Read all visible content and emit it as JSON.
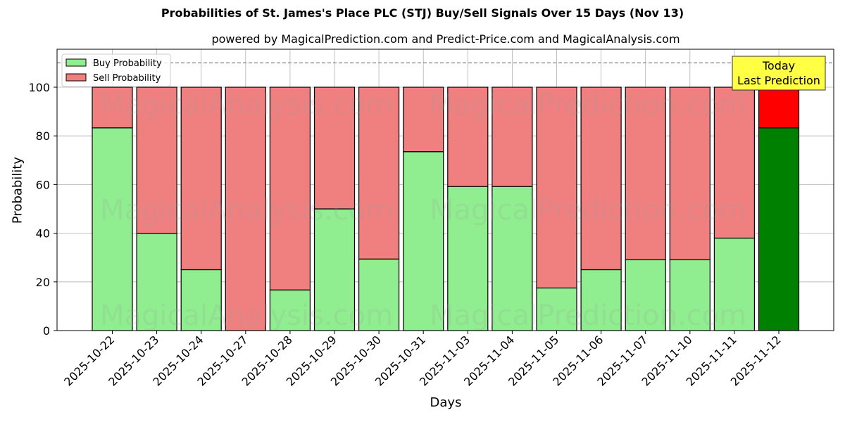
{
  "chart_data": {
    "type": "bar",
    "stacked": true,
    "title": "Probabilities of St. James's Place PLC (STJ) Buy/Sell Signals Over 15 Days (Nov 13)",
    "subtitle": "powered by MagicalPrediction.com and Predict-Price.com and MagicalAnalysis.com",
    "xlabel": "Days",
    "ylabel": "Probability",
    "ylim": [
      0,
      115
    ],
    "yticks": [
      0,
      20,
      40,
      60,
      80,
      100
    ],
    "grid": true,
    "reference_line": 110,
    "legend_position": "upper left",
    "categories": [
      "2025-10-22",
      "2025-10-23",
      "2025-10-24",
      "2025-10-27",
      "2025-10-28",
      "2025-10-29",
      "2025-10-30",
      "2025-10-31",
      "2025-11-03",
      "2025-11-04",
      "2025-11-05",
      "2025-11-06",
      "2025-11-07",
      "2025-11-10",
      "2025-11-11",
      "2025-11-12"
    ],
    "series": [
      {
        "name": "Buy Probability",
        "color": "#90ee90",
        "values": [
          83.3,
          40,
          25,
          0,
          16.7,
          50,
          29.4,
          73.5,
          59.2,
          59.2,
          17.5,
          25,
          29.1,
          29.1,
          38,
          83.3
        ]
      },
      {
        "name": "Sell Probability",
        "color": "#f08080",
        "values": [
          16.7,
          60,
          75,
          100,
          83.3,
          50,
          70.6,
          26.5,
          40.8,
          40.8,
          82.5,
          75,
          70.9,
          70.9,
          62,
          16.7
        ]
      }
    ],
    "highlight": {
      "index": 15,
      "buy_color": "#008000",
      "sell_color": "#ff0000",
      "annotation": [
        "Today",
        "Last Prediction"
      ]
    },
    "watermarks": [
      "MagicalAnalysis.com",
      "MagicalPrediction.com"
    ]
  }
}
